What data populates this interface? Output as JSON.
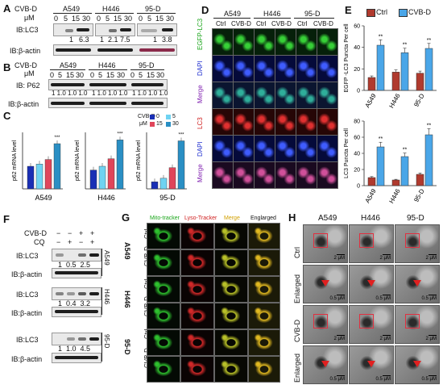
{
  "figure": {
    "panel_labels": [
      "A",
      "B",
      "C",
      "D",
      "E",
      "F",
      "G",
      "H"
    ],
    "cell_lines": [
      "A549",
      "H446",
      "95-D"
    ],
    "panel_A": {
      "treatment": "CVB-D",
      "unit": "μM",
      "doses": [
        "0",
        "5",
        "15",
        "30"
      ],
      "row1_label": "IB:LC3",
      "row2_label": "IB:β-actin",
      "quant": {
        "A549": [
          "1",
          "6.3"
        ],
        "H446": [
          "1",
          "2.1",
          "7.5"
        ],
        "95-D": [
          "1",
          "3.8"
        ]
      }
    },
    "panel_B": {
      "treatment": "CVB-D",
      "unit": "μM",
      "doses": [
        "0",
        "5",
        "15",
        "30"
      ],
      "row1_label": "IB: P62",
      "row2_label": "IB:β-actin",
      "quant_row": "1 1.0 1.0 1.0"
    },
    "panel_C": {
      "ylabel": "p62 mRNA level",
      "legend_title": "CVB-D",
      "legend_unit": "μM",
      "legend_doses": [
        "0",
        "15",
        "5",
        "30"
      ],
      "legend_colors": [
        "#1a2fb5",
        "#e0455a",
        "#6fd3f2",
        "#2a8fc4"
      ],
      "stars": "***"
    },
    "panel_D": {
      "col_headers": [
        "Ctrl",
        "CVB-D",
        "Ctrl",
        "CVB-D",
        "Ctrl",
        "CVB-D"
      ],
      "row_labels": [
        "EGFP-LC3",
        "DAPI",
        "Merge",
        "LC3",
        "DAPI",
        "Merge"
      ]
    },
    "panel_E": {
      "legend": [
        "Ctrl",
        "CVB-D"
      ],
      "stars": "**"
    },
    "panel_F": {
      "row_cvb": "CVB-D",
      "row_cq": "CQ",
      "signs_cvb": [
        "−",
        "−",
        "+",
        "+"
      ],
      "signs_cq": [
        "−",
        "+",
        "−",
        "+"
      ],
      "lc3": "IB:LC3",
      "actin": "IB:β-actin",
      "quant": {
        "A549": "1  0.5  2.5",
        "H446": "1  0.4  3.2",
        "95-D": "1  1.0  4.5"
      }
    },
    "panel_G": {
      "col_headers": [
        "Mito-tracker",
        "Lyso-Tracker",
        "Merge",
        "Englarged"
      ],
      "row_labels": [
        "Ctrl",
        "CVB-D",
        "Ctrl",
        "CVB-D",
        "Ctrl",
        "CVB-D"
      ]
    },
    "panel_H": {
      "row_labels": [
        "Ctrl",
        "Enlarged",
        "CVB-D",
        "Enlarged"
      ],
      "scale_large": "2 μM",
      "scale_small": "0.5 μM"
    }
  },
  "chart_data": [
    {
      "type": "bar",
      "panel": "C",
      "ylabel": "p62 mRNA level",
      "categories": [
        "A549",
        "H446",
        "95-D"
      ],
      "series": [
        {
          "name": "0",
          "values": [
            1.0,
            1.0,
            1.0
          ]
        },
        {
          "name": "5",
          "values": [
            1.1,
            1.2,
            1.5
          ]
        },
        {
          "name": "15",
          "values": [
            1.3,
            1.6,
            3.0
          ]
        },
        {
          "name": "30",
          "values": [
            2.0,
            2.6,
            6.8
          ]
        }
      ]
    },
    {
      "type": "bar",
      "panel": "E-top",
      "ylabel": "EGFP -LC3 Puncta Per cell",
      "categories": [
        "A549",
        "H446",
        "95-D"
      ],
      "ylim": [
        0,
        60
      ],
      "yticks": [
        0,
        20,
        40,
        60
      ],
      "series": [
        {
          "name": "Ctrl",
          "values": [
            12,
            17,
            16
          ]
        },
        {
          "name": "CVB-D",
          "values": [
            42,
            35,
            39
          ]
        }
      ]
    },
    {
      "type": "bar",
      "panel": "E-bottom",
      "ylabel": "LC3 Puncta Per cell",
      "categories": [
        "A549",
        "H446",
        "95-D"
      ],
      "ylim": [
        0,
        80
      ],
      "yticks": [
        0,
        20,
        40,
        60,
        80
      ],
      "series": [
        {
          "name": "Ctrl",
          "values": [
            10,
            7,
            14
          ]
        },
        {
          "name": "CVB-D",
          "values": [
            48,
            36,
            63
          ]
        }
      ]
    }
  ]
}
